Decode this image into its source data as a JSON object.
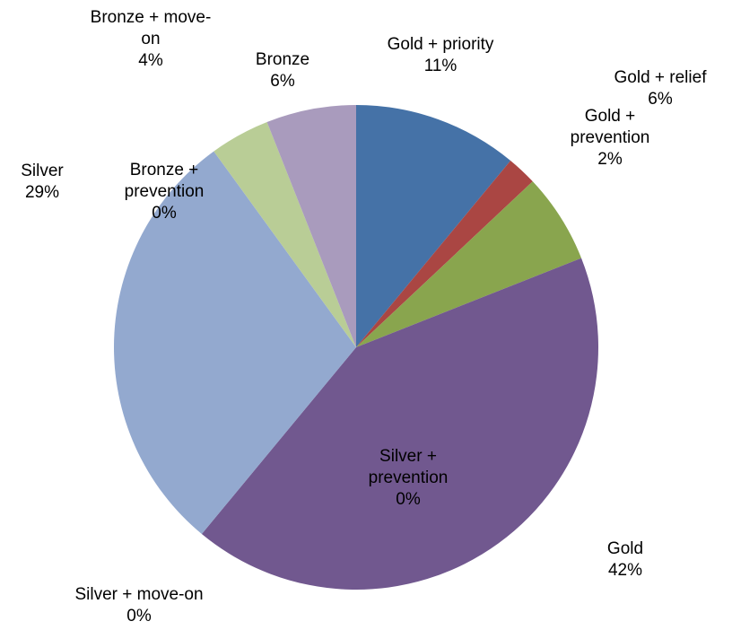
{
  "chart_data": {
    "type": "pie",
    "title": "",
    "start_angle_deg": 0,
    "direction": "clockwise",
    "legend": "none",
    "slices": [
      {
        "label_lines": [
          "Gold + priority"
        ],
        "value_label": "11%",
        "value": 11,
        "color": "#4572A7"
      },
      {
        "label_lines": [
          "Gold +",
          "prevention"
        ],
        "value_label": "2%",
        "value": 2,
        "color": "#AA4643"
      },
      {
        "label_lines": [
          "Gold + relief"
        ],
        "value_label": "6%",
        "value": 6,
        "color": "#89A54E"
      },
      {
        "label_lines": [
          "Gold"
        ],
        "value_label": "42%",
        "value": 42,
        "color": "#71588F"
      },
      {
        "label_lines": [
          "Silver + move-on"
        ],
        "value_label": "0%",
        "value": 0,
        "color": "#4198AF"
      },
      {
        "label_lines": [
          "Silver +",
          "prevention"
        ],
        "value_label": "0%",
        "value": 0,
        "color": "#DB843D"
      },
      {
        "label_lines": [
          "Silver"
        ],
        "value_label": "29%",
        "value": 29,
        "color": "#93A9CF"
      },
      {
        "label_lines": [
          "Bronze +",
          "prevention"
        ],
        "value_label": "0%",
        "value": 0,
        "color": "#D19392"
      },
      {
        "label_lines": [
          "Bronze + move-",
          "on"
        ],
        "value_label": "4%",
        "value": 4,
        "color": "#B9CD96"
      },
      {
        "label_lines": [
          "Bronze"
        ],
        "value_label": "6%",
        "value": 6,
        "color": "#A99BBD"
      }
    ]
  }
}
